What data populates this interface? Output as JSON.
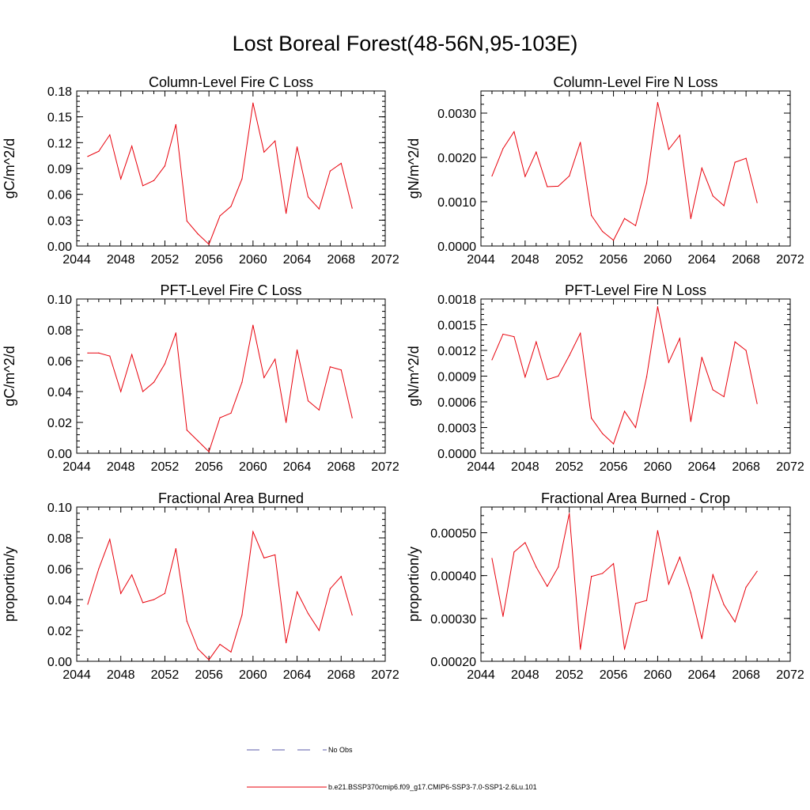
{
  "page_title": "Lost Boreal Forest(48-56N,95-103E)",
  "colors": {
    "model_line": "#e8000b",
    "obs_line": "#5a5aa8",
    "axis": "#000000"
  },
  "legend": [
    {
      "label": "No Obs",
      "style": "dashed",
      "color": "#5a5aa8"
    },
    {
      "label": "b.e21.BSSP370cmip6.f09_g17.CMIP6-SSP3-7.0-SSP1-2.6Lu.101",
      "style": "solid",
      "color": "#e8000b"
    }
  ],
  "chart_data": [
    {
      "type": "line",
      "title": "Column-Level Fire C Loss",
      "xlabel": "",
      "ylabel": "gC/m^2/d",
      "xlim": [
        2044,
        2072
      ],
      "ylim": [
        0,
        0.18
      ],
      "x_ticks": [
        "2044",
        "2048",
        "2052",
        "2056",
        "2060",
        "2064",
        "2068",
        "2072"
      ],
      "y_ticks": [
        "0.00",
        "0.03",
        "0.06",
        "0.09",
        "0.12",
        "0.15",
        "0.18"
      ],
      "x": [
        2045,
        2046,
        2047,
        2048,
        2049,
        2050,
        2051,
        2052,
        2053,
        2054,
        2055,
        2056,
        2057,
        2058,
        2059,
        2060,
        2061,
        2062,
        2063,
        2064,
        2065,
        2066,
        2067,
        2068,
        2069
      ],
      "series": [
        {
          "values": [
            0.104,
            0.11,
            0.129,
            0.078,
            0.116,
            0.07,
            0.076,
            0.093,
            0.141,
            0.029,
            0.014,
            0.002,
            0.035,
            0.046,
            0.078,
            0.166,
            0.109,
            0.122,
            0.038,
            0.115,
            0.057,
            0.043,
            0.087,
            0.096,
            0.044
          ]
        }
      ]
    },
    {
      "type": "line",
      "title": "Column-Level Fire N Loss",
      "xlabel": "",
      "ylabel": "gN/m^2/d",
      "xlim": [
        2044,
        2072
      ],
      "ylim": [
        0,
        0.0035
      ],
      "x_ticks": [
        "2044",
        "2048",
        "2052",
        "2056",
        "2060",
        "2064",
        "2068",
        "2072"
      ],
      "y_ticks": [
        "0.0000",
        "0.0010",
        "0.0020",
        "0.0030"
      ],
      "y_tick_values": [
        0,
        0.001,
        0.002,
        0.003
      ],
      "x": [
        2045,
        2046,
        2047,
        2048,
        2049,
        2050,
        2051,
        2052,
        2053,
        2054,
        2055,
        2056,
        2057,
        2058,
        2059,
        2060,
        2061,
        2062,
        2063,
        2064,
        2065,
        2066,
        2067,
        2068,
        2069
      ],
      "series": [
        {
          "values": [
            0.00158,
            0.0022,
            0.00258,
            0.00157,
            0.00212,
            0.00134,
            0.00135,
            0.00158,
            0.00234,
            0.00069,
            0.00033,
            0.00013,
            0.00062,
            0.00046,
            0.00142,
            0.00324,
            0.00218,
            0.0025,
            0.00062,
            0.00176,
            0.00113,
            0.00091,
            0.00189,
            0.00198,
            0.00098
          ]
        }
      ]
    },
    {
      "type": "line",
      "title": "PFT-Level Fire C Loss",
      "xlabel": "",
      "ylabel": "gC/m^2/d",
      "xlim": [
        2044,
        2072
      ],
      "ylim": [
        0,
        0.1
      ],
      "x_ticks": [
        "2044",
        "2048",
        "2052",
        "2056",
        "2060",
        "2064",
        "2068",
        "2072"
      ],
      "y_ticks": [
        "0.00",
        "0.02",
        "0.04",
        "0.06",
        "0.08",
        "0.10"
      ],
      "x": [
        2045,
        2046,
        2047,
        2048,
        2049,
        2050,
        2051,
        2052,
        2053,
        2054,
        2055,
        2056,
        2057,
        2058,
        2059,
        2060,
        2061,
        2062,
        2063,
        2064,
        2065,
        2066,
        2067,
        2068,
        2069
      ],
      "series": [
        {
          "values": [
            0.065,
            0.065,
            0.063,
            0.04,
            0.064,
            0.04,
            0.046,
            0.058,
            0.078,
            0.015,
            0.008,
            0.001,
            0.023,
            0.026,
            0.046,
            0.083,
            0.049,
            0.061,
            0.02,
            0.067,
            0.034,
            0.028,
            0.056,
            0.054,
            0.023
          ]
        }
      ]
    },
    {
      "type": "line",
      "title": "PFT-Level Fire N Loss",
      "xlabel": "",
      "ylabel": "gN/m^2/d",
      "xlim": [
        2044,
        2072
      ],
      "ylim": [
        0,
        0.0018
      ],
      "x_ticks": [
        "2044",
        "2048",
        "2052",
        "2056",
        "2060",
        "2064",
        "2068",
        "2072"
      ],
      "y_ticks": [
        "0.0000",
        "0.0003",
        "0.0006",
        "0.0009",
        "0.0012",
        "0.0015",
        "0.0018"
      ],
      "x": [
        2045,
        2046,
        2047,
        2048,
        2049,
        2050,
        2051,
        2052,
        2053,
        2054,
        2055,
        2056,
        2057,
        2058,
        2059,
        2060,
        2061,
        2062,
        2063,
        2064,
        2065,
        2066,
        2067,
        2068,
        2069
      ],
      "series": [
        {
          "values": [
            0.00109,
            0.00139,
            0.00136,
            0.00089,
            0.0013,
            0.00086,
            0.0009,
            0.00114,
            0.0014,
            0.00041,
            0.00023,
            0.00011,
            0.00049,
            0.0003,
            0.00089,
            0.00171,
            0.00106,
            0.00134,
            0.00037,
            0.00112,
            0.00074,
            0.00066,
            0.0013,
            0.0012,
            0.00058
          ]
        }
      ]
    },
    {
      "type": "line",
      "title": "Fractional Area Burned",
      "xlabel": "",
      "ylabel": "proportion/y",
      "xlim": [
        2044,
        2072
      ],
      "ylim": [
        0,
        0.1
      ],
      "x_ticks": [
        "2044",
        "2048",
        "2052",
        "2056",
        "2060",
        "2064",
        "2068",
        "2072"
      ],
      "y_ticks": [
        "0.00",
        "0.02",
        "0.04",
        "0.06",
        "0.08",
        "0.10"
      ],
      "x": [
        2045,
        2046,
        2047,
        2048,
        2049,
        2050,
        2051,
        2052,
        2053,
        2054,
        2055,
        2056,
        2057,
        2058,
        2059,
        2060,
        2061,
        2062,
        2063,
        2064,
        2065,
        2066,
        2067,
        2068,
        2069
      ],
      "series": [
        {
          "values": [
            0.037,
            0.06,
            0.079,
            0.044,
            0.056,
            0.038,
            0.04,
            0.044,
            0.073,
            0.026,
            0.008,
            0.001,
            0.011,
            0.006,
            0.03,
            0.084,
            0.067,
            0.069,
            0.012,
            0.045,
            0.031,
            0.02,
            0.047,
            0.055,
            0.03
          ]
        }
      ]
    },
    {
      "type": "line",
      "title": "Fractional Area Burned - Crop",
      "xlabel": "",
      "ylabel": "proportion/y",
      "xlim": [
        2044,
        2072
      ],
      "ylim": [
        0.0002,
        0.00056
      ],
      "x_ticks": [
        "2044",
        "2048",
        "2052",
        "2056",
        "2060",
        "2064",
        "2068",
        "2072"
      ],
      "y_ticks": [
        "0.00020",
        "0.00030",
        "0.00040",
        "0.00050"
      ],
      "y_tick_values": [
        0.0002,
        0.0003,
        0.0004,
        0.0005
      ],
      "x": [
        2045,
        2046,
        2047,
        2048,
        2049,
        2050,
        2051,
        2052,
        2053,
        2054,
        2055,
        2056,
        2057,
        2058,
        2059,
        2060,
        2061,
        2062,
        2063,
        2064,
        2065,
        2066,
        2067,
        2068,
        2069
      ],
      "series": [
        {
          "values": [
            0.00044,
            0.000305,
            0.000455,
            0.000477,
            0.00042,
            0.000375,
            0.00042,
            0.000545,
            0.000228,
            0.000398,
            0.000405,
            0.000428,
            0.000228,
            0.000335,
            0.000342,
            0.000505,
            0.00038,
            0.000443,
            0.00036,
            0.000253,
            0.000402,
            0.000332,
            0.000292,
            0.000373,
            0.00041
          ]
        }
      ]
    }
  ]
}
